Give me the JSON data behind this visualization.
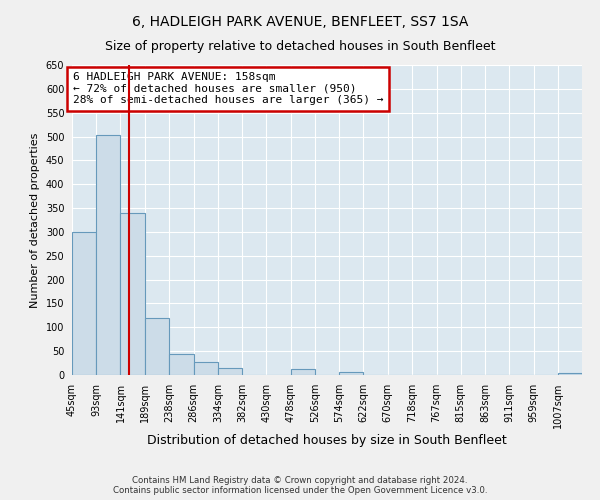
{
  "title": "6, HADLEIGH PARK AVENUE, BENFLEET, SS7 1SA",
  "subtitle": "Size of property relative to detached houses in South Benfleet",
  "xlabel": "Distribution of detached houses by size in South Benfleet",
  "ylabel": "Number of detached properties",
  "footer_line1": "Contains HM Land Registry data © Crown copyright and database right 2024.",
  "footer_line2": "Contains public sector information licensed under the Open Government Licence v3.0.",
  "bin_labels": [
    "45sqm",
    "93sqm",
    "141sqm",
    "189sqm",
    "238sqm",
    "286sqm",
    "334sqm",
    "382sqm",
    "430sqm",
    "478sqm",
    "526sqm",
    "574sqm",
    "622sqm",
    "670sqm",
    "718sqm",
    "767sqm",
    "815sqm",
    "863sqm",
    "911sqm",
    "959sqm",
    "1007sqm"
  ],
  "bin_edges": [
    45,
    93,
    141,
    189,
    238,
    286,
    334,
    382,
    430,
    478,
    526,
    574,
    622,
    670,
    718,
    767,
    815,
    863,
    911,
    959,
    1007
  ],
  "bar_values": [
    300,
    503,
    340,
    120,
    45,
    28,
    15,
    0,
    0,
    13,
    0,
    7,
    0,
    0,
    0,
    0,
    0,
    0,
    0,
    0,
    5
  ],
  "bar_color": "#ccdce8",
  "bar_edge_color": "#6699bb",
  "property_size": 158,
  "property_line_color": "#cc0000",
  "annotation_text_line1": "6 HADLEIGH PARK AVENUE: 158sqm",
  "annotation_text_line2": "← 72% of detached houses are smaller (950)",
  "annotation_text_line3": "28% of semi-detached houses are larger (365) →",
  "annotation_box_color": "#cc0000",
  "ylim": [
    0,
    650
  ],
  "plot_bg_color": "#dce8f0",
  "figure_bg_color": "#f0f0f0",
  "grid_color": "#ffffff",
  "title_fontsize": 10,
  "subtitle_fontsize": 9,
  "ylabel_fontsize": 8,
  "xlabel_fontsize": 9,
  "tick_fontsize": 7,
  "annotation_fontsize": 8
}
